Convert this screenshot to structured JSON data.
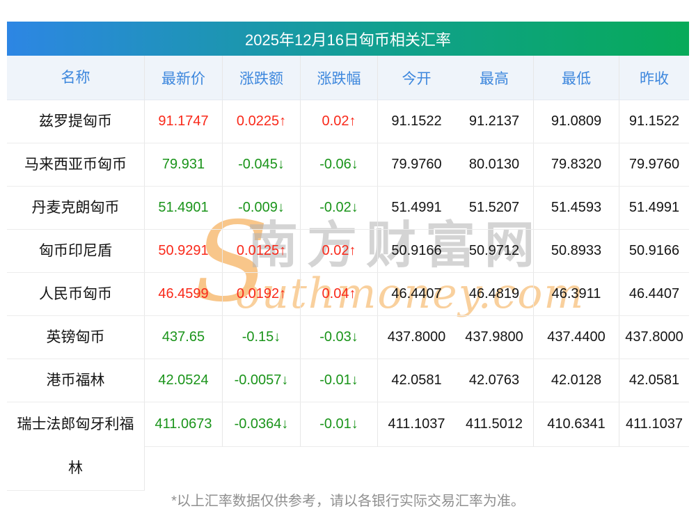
{
  "title": "2025年12月16日匈币相关汇率",
  "table": {
    "headers": [
      "名称",
      "最新价",
      "涨跌额",
      "涨跌幅",
      "今开",
      "最高",
      "最低",
      "昨收"
    ],
    "rows": [
      {
        "name": "兹罗提匈币",
        "last": "91.1747",
        "chg": "0.0225↑",
        "pct": "0.02↑",
        "open": "91.1522",
        "high": "91.2137",
        "low": "91.0809",
        "prev": "91.1522",
        "trend": "up"
      },
      {
        "name": "马来西亚币匈币",
        "last": "79.931",
        "chg": "-0.045↓",
        "pct": "-0.06↓",
        "open": "79.9760",
        "high": "80.0130",
        "low": "79.8320",
        "prev": "79.9760",
        "trend": "down"
      },
      {
        "name": "丹麦克朗匈币",
        "last": "51.4901",
        "chg": "-0.009↓",
        "pct": "-0.02↓",
        "open": "51.4991",
        "high": "51.5207",
        "low": "51.4593",
        "prev": "51.4991",
        "trend": "down"
      },
      {
        "name": "匈币印尼盾",
        "last": "50.9291",
        "chg": "0.0125↑",
        "pct": "0.02↑",
        "open": "50.9166",
        "high": "50.9712",
        "low": "50.8933",
        "prev": "50.9166",
        "trend": "up"
      },
      {
        "name": "人民币匈币",
        "last": "46.4599",
        "chg": "0.0192↑",
        "pct": "0.04↑",
        "open": "46.4407",
        "high": "46.4819",
        "low": "46.3911",
        "prev": "46.4407",
        "trend": "up"
      },
      {
        "name": "英镑匈币",
        "last": "437.65",
        "chg": "-0.15↓",
        "pct": "-0.03↓",
        "open": "437.8000",
        "high": "437.9800",
        "low": "437.4400",
        "prev": "437.8000",
        "trend": "down"
      },
      {
        "name": "港币福林",
        "last": "42.0524",
        "chg": "-0.0057↓",
        "pct": "-0.01↓",
        "open": "42.0581",
        "high": "42.0763",
        "low": "42.0128",
        "prev": "42.0581",
        "trend": "down"
      },
      {
        "name": "瑞士法郎匈牙利福林",
        "last": "411.0673",
        "chg": "-0.0364↓",
        "pct": "-0.01↓",
        "open": "411.1037",
        "high": "411.5012",
        "low": "410.6341",
        "prev": "411.1037",
        "trend": "down"
      }
    ]
  },
  "footer": {
    "disclaimer": "*以上汇率数据仅供参考，请以各银行实际交易汇率为准。"
  },
  "watermark": {
    "initial": "S",
    "script": "outhmoney.com",
    "chinese": "南方财富网"
  },
  "colors": {
    "up_red": "#f9291a",
    "down_green": "#1a941a",
    "header_text_blue": "#3d87dd",
    "header_row_bg": "#eff4fa",
    "gradient_start": "#2d86e4",
    "gradient_end": "#07aa59"
  }
}
